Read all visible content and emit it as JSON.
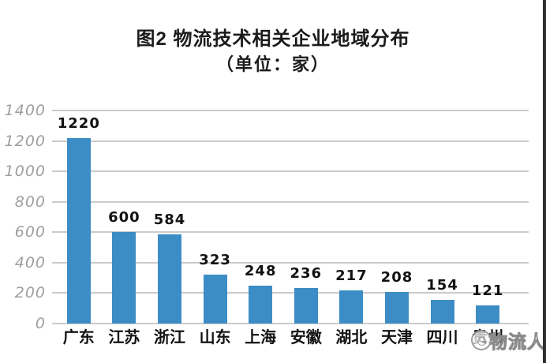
{
  "title": {
    "line1": "图2 物流技术相关企业地域分布",
    "line2": "（单位：家）"
  },
  "watermark": {
    "text": "物流人",
    "logo": "round-badge-logo"
  },
  "colors": {
    "bar": "#3C8DC5",
    "gridline": "#cbcbcb",
    "ytick_text": "#9e9e9e",
    "label_text": "#121212",
    "right_border": "#2f2f2f"
  },
  "chart_data": {
    "type": "bar",
    "title": "图2 物流技术相关企业地域分布",
    "subtitle": "（单位：家）",
    "categories": [
      "广东",
      "江苏",
      "浙江",
      "山东",
      "上海",
      "安徽",
      "湖北",
      "天津",
      "四川",
      "贵州"
    ],
    "values": [
      1220,
      600,
      584,
      323,
      248,
      236,
      217,
      208,
      154,
      121
    ],
    "xlabel": "",
    "ylabel": "",
    "ylim": [
      0,
      1400
    ],
    "yticks": [
      0,
      200,
      400,
      600,
      800,
      1000,
      1200,
      1400
    ],
    "grid": true,
    "legend": false,
    "value_labels": true
  }
}
